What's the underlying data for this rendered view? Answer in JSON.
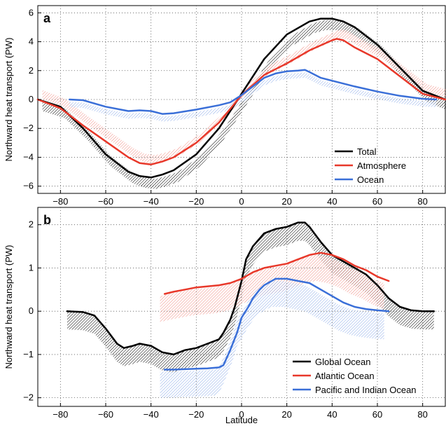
{
  "colors": {
    "total": "#000000",
    "atmosphere": "#e8382a",
    "ocean": "#3a6fd8",
    "background": "#ffffff",
    "grid": "#555555"
  },
  "chart_data": [
    {
      "type": "line",
      "panel_label": "a",
      "xlabel": "",
      "ylabel": "Northward heat transport (PW)",
      "xlim": [
        -90,
        90
      ],
      "ylim": [
        -6.5,
        6.5
      ],
      "xticks": [
        -80,
        -60,
        -40,
        -20,
        0,
        20,
        40,
        60,
        80
      ],
      "yticks": [
        -6,
        -4,
        -2,
        0,
        2,
        4,
        6
      ],
      "grid": true,
      "legend_position": "bottom-right",
      "series": [
        {
          "name": "Total",
          "color": "#000000",
          "x": [
            -90,
            -80,
            -70,
            -60,
            -50,
            -45,
            -40,
            -35,
            -30,
            -20,
            -10,
            0,
            10,
            20,
            30,
            35,
            40,
            45,
            50,
            60,
            70,
            80,
            90
          ],
          "y": [
            0,
            -0.5,
            -2.0,
            -3.8,
            -5.0,
            -5.3,
            -5.4,
            -5.2,
            -4.9,
            -3.8,
            -2.0,
            0.4,
            2.8,
            4.5,
            5.4,
            5.6,
            5.6,
            5.4,
            5.0,
            3.8,
            2.2,
            0.6,
            0
          ]
        },
        {
          "name": "Atmosphere",
          "color": "#e8382a",
          "x": [
            -90,
            -80,
            -70,
            -60,
            -50,
            -45,
            -40,
            -35,
            -30,
            -20,
            -10,
            0,
            10,
            15,
            20,
            30,
            40,
            42,
            45,
            50,
            60,
            70,
            80,
            90
          ],
          "y": [
            0,
            -0.6,
            -1.8,
            -2.9,
            -4.0,
            -4.4,
            -4.5,
            -4.3,
            -4.0,
            -3.0,
            -1.6,
            0.3,
            1.7,
            2.1,
            2.5,
            3.4,
            4.1,
            4.2,
            4.1,
            3.6,
            2.8,
            1.6,
            0.4,
            0
          ]
        },
        {
          "name": "Ocean",
          "color": "#3a6fd8",
          "x": [
            -76,
            -70,
            -60,
            -50,
            -45,
            -40,
            -35,
            -30,
            -20,
            -10,
            -5,
            0,
            5,
            10,
            15,
            20,
            25,
            28,
            30,
            35,
            40,
            45,
            50,
            60,
            70,
            80,
            86
          ],
          "y": [
            0,
            -0.05,
            -0.5,
            -0.8,
            -0.75,
            -0.8,
            -1.0,
            -0.95,
            -0.7,
            -0.4,
            -0.2,
            0.3,
            0.9,
            1.5,
            1.8,
            1.95,
            2.0,
            2.05,
            1.9,
            1.5,
            1.3,
            1.1,
            0.9,
            0.55,
            0.25,
            0.05,
            0
          ]
        }
      ]
    },
    {
      "type": "line",
      "panel_label": "b",
      "xlabel": "Latitude",
      "ylabel": "Northward heat transport (PW)",
      "xlim": [
        -90,
        90
      ],
      "ylim": [
        -2.2,
        2.4
      ],
      "xticks": [
        -80,
        -60,
        -40,
        -20,
        0,
        20,
        40,
        60,
        80
      ],
      "yticks": [
        -2,
        -1,
        0,
        1,
        2
      ],
      "grid": true,
      "legend_position": "bottom-right",
      "series": [
        {
          "name": "Global Ocean",
          "color": "#000000",
          "x": [
            -77,
            -70,
            -65,
            -60,
            -55,
            -52,
            -48,
            -45,
            -40,
            -35,
            -30,
            -25,
            -20,
            -15,
            -10,
            -8,
            -5,
            -3,
            0,
            2,
            5,
            10,
            15,
            20,
            25,
            28,
            30,
            35,
            40,
            45,
            50,
            55,
            60,
            65,
            70,
            75,
            80,
            85
          ],
          "y": [
            0,
            -0.02,
            -0.1,
            -0.4,
            -0.75,
            -0.85,
            -0.8,
            -0.75,
            -0.8,
            -0.95,
            -1.0,
            -0.9,
            -0.85,
            -0.75,
            -0.65,
            -0.5,
            -0.2,
            0.1,
            0.7,
            1.2,
            1.5,
            1.8,
            1.9,
            1.95,
            2.05,
            2.05,
            1.95,
            1.6,
            1.3,
            1.15,
            1.0,
            0.85,
            0.6,
            0.3,
            0.1,
            0.02,
            0,
            0
          ]
        },
        {
          "name": "Atlantic Ocean",
          "color": "#e8382a",
          "x": [
            -34,
            -30,
            -25,
            -20,
            -10,
            -5,
            0,
            5,
            10,
            15,
            20,
            25,
            30,
            35,
            40,
            45,
            50,
            55,
            60,
            65
          ],
          "y": [
            0.4,
            0.45,
            0.5,
            0.55,
            0.6,
            0.65,
            0.75,
            0.9,
            1.0,
            1.05,
            1.1,
            1.2,
            1.3,
            1.35,
            1.3,
            1.2,
            1.05,
            0.95,
            0.8,
            0.7
          ]
        },
        {
          "name": "Pacific and Indian Ocean",
          "color": "#3a6fd8",
          "x": [
            -34,
            -30,
            -20,
            -15,
            -10,
            -8,
            -5,
            -2,
            0,
            3,
            5,
            8,
            10,
            15,
            20,
            25,
            30,
            35,
            40,
            45,
            50,
            55,
            60,
            65
          ],
          "y": [
            -1.35,
            -1.35,
            -1.33,
            -1.32,
            -1.3,
            -1.25,
            -0.9,
            -0.5,
            -0.15,
            0.1,
            0.3,
            0.5,
            0.6,
            0.75,
            0.75,
            0.7,
            0.65,
            0.5,
            0.35,
            0.2,
            0.1,
            0.05,
            0.02,
            0
          ]
        }
      ]
    }
  ]
}
